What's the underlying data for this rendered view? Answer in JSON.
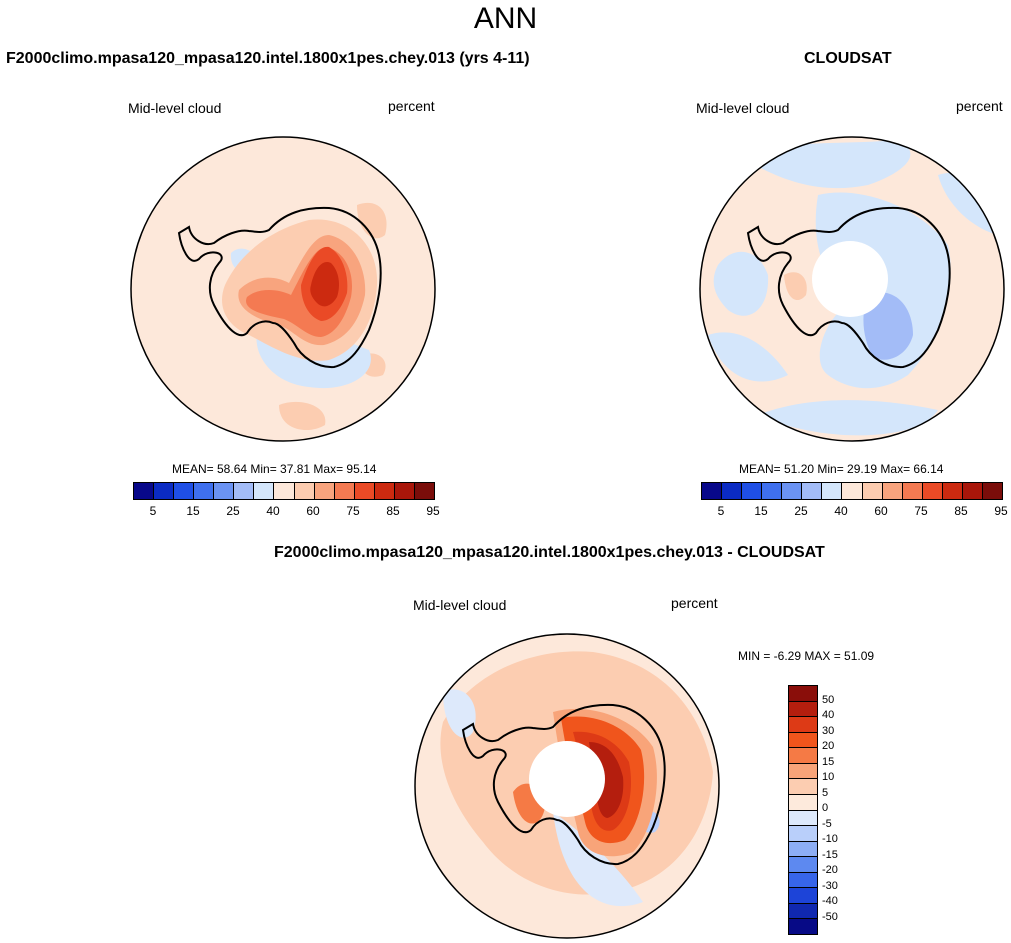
{
  "title": "ANN",
  "panels": {
    "model": {
      "title": "F2000climo.mpasa120_mpasa120.intel.1800x1pes.chey.013 (yrs 4-11)",
      "variable": "Mid-level cloud",
      "units": "percent",
      "stats": "MEAN=  58.64  Min=  37.81  Max=  95.14"
    },
    "obs": {
      "title": "CLOUDSAT",
      "variable": "Mid-level cloud",
      "units": "percent",
      "stats": "MEAN=  51.20  Min=  29.19  Max=  66.14"
    },
    "diff": {
      "title": "F2000climo.mpasa120_mpasa120.intel.1800x1pes.chey.013 - CLOUDSAT",
      "variable": "Mid-level cloud",
      "units": "percent",
      "stats": "MIN =  -6.29 MAX =  51.09"
    }
  },
  "colorbar_abs": {
    "colors": [
      "#08088a",
      "#0b2bc4",
      "#1f4fe6",
      "#3f70ef",
      "#6b93f3",
      "#a3bcf7",
      "#d4e6fb",
      "#fde8da",
      "#fcccb0",
      "#f8a47e",
      "#f47a52",
      "#ea4a26",
      "#cc2a10",
      "#a9160a",
      "#7a0d0a"
    ],
    "tick_labels": [
      "5",
      "15",
      "25",
      "40",
      "60",
      "75",
      "85",
      "95"
    ]
  },
  "colorbar_diff": {
    "colors": [
      "#8a0e0a",
      "#b41e0e",
      "#dd3a16",
      "#f0551c",
      "#f57a45",
      "#f8a479",
      "#fccdb1",
      "#fdeadc",
      "#dde9fb",
      "#b9cffa",
      "#8daef5",
      "#5d89f0",
      "#3765ea",
      "#1d44d8",
      "#1028b0",
      "#070a86"
    ],
    "tick_labels": [
      "50",
      "40",
      "30",
      "20",
      "15",
      "10",
      "5",
      "0",
      "-5",
      "-10",
      "-15",
      "-20",
      "-30",
      "-40",
      "-50"
    ]
  },
  "map_fields": {
    "model": {
      "background": "#fde8da",
      "mask_pole": false,
      "colors": [
        "#fccdb1",
        "#f8a47e",
        "#f47a52",
        "#ea4a26",
        "#cc2a10",
        "#d4e6fb"
      ]
    },
    "obs": {
      "background": "#fde8da",
      "mask_pole": true,
      "colors": [
        "#d4e6fb",
        "#a3bcf7",
        "#fccdb1"
      ]
    },
    "diff": {
      "background": "#fde8da",
      "mask_pole": true,
      "colors": [
        "#fccdb1",
        "#f8a479",
        "#f57a45",
        "#f0551c",
        "#dd3a16",
        "#b41e0e",
        "#dde9fb",
        "#b9cffa"
      ]
    }
  }
}
